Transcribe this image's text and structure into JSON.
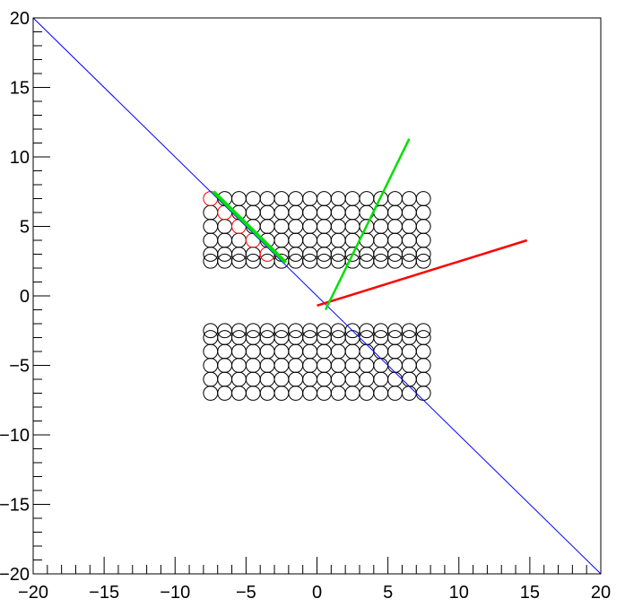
{
  "chart_data": {
    "type": "scatter",
    "title": "",
    "xlabel": "",
    "ylabel": "",
    "xlim": [
      -20,
      20
    ],
    "ylim": [
      -20,
      20
    ],
    "grid": false,
    "x_major_ticks": [
      -20,
      -15,
      -10,
      -5,
      0,
      5,
      10,
      15,
      20
    ],
    "y_major_ticks": [
      -20,
      -15,
      -10,
      -5,
      0,
      5,
      10,
      15,
      20
    ],
    "x_tick_labels": [
      "−20",
      "−15",
      "−10",
      "−5",
      "0",
      "5",
      "10",
      "15",
      "20"
    ],
    "y_tick_labels": [
      "−20",
      "−15",
      "−10",
      "−5",
      "0",
      "5",
      "10",
      "15",
      "20"
    ],
    "tube_radius": 0.5,
    "tube_grid": {
      "x_columns": [
        -7.5,
        -6.5,
        -5.5,
        -4.5,
        -3.5,
        -2.5,
        -1.5,
        -0.5,
        0.5,
        1.5,
        2.5,
        3.5,
        4.5,
        5.5,
        6.5,
        7.5
      ],
      "upper_rows_y": [
        2.5,
        3.0,
        4.0,
        5.0,
        6.0,
        7.0
      ],
      "lower_rows_y": [
        -2.5,
        -3.0,
        -4.0,
        -5.0,
        -6.0,
        -7.0
      ],
      "color": "#000000"
    },
    "hit_tubes": {
      "color": "#ff0000",
      "points": [
        {
          "x": -7.5,
          "y": 7.0
        },
        {
          "x": -6.5,
          "y": 6.0
        },
        {
          "x": -5.5,
          "y": 5.0
        },
        {
          "x": -4.5,
          "y": 4.0
        },
        {
          "x": -3.5,
          "y": 3.0
        }
      ]
    },
    "series": [
      {
        "kind": "line",
        "color": "#0000ff",
        "width": 1,
        "points": [
          [
            -20,
            20
          ],
          [
            20,
            -20
          ]
        ]
      },
      {
        "kind": "line",
        "color": "#ff0000",
        "width": 2.5,
        "points": [
          [
            0,
            -0.7
          ],
          [
            14.8,
            4.0
          ]
        ]
      },
      {
        "kind": "line",
        "color": "#00e000",
        "width": 2.5,
        "points": [
          [
            0.6,
            -1.0
          ],
          [
            6.5,
            11.3
          ]
        ]
      },
      {
        "kind": "line",
        "color": "#00e000",
        "width": 4,
        "points": [
          [
            -7.3,
            7.5
          ],
          [
            -2.2,
            2.4
          ]
        ]
      }
    ]
  }
}
